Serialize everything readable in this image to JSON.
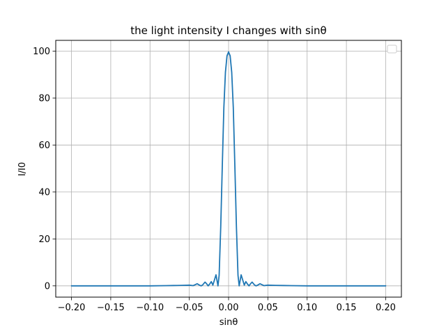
{
  "chart_data": {
    "type": "line",
    "title": "the light intensity I changes with sinθ",
    "xlabel": "sinθ",
    "ylabel": "I/I0",
    "xlim": [
      -0.22,
      0.22
    ],
    "ylim": [
      -4.8,
      104.6
    ],
    "xticks": [
      -0.2,
      -0.15,
      -0.1,
      -0.05,
      0.0,
      0.05,
      0.1,
      0.15,
      0.2
    ],
    "xtick_labels": [
      "−0.20",
      "−0.15",
      "−0.10",
      "−0.05",
      "0.00",
      "0.05",
      "0.10",
      "0.15",
      "0.20"
    ],
    "yticks": [
      0,
      20,
      40,
      60,
      80,
      100
    ],
    "ytick_labels": [
      "0",
      "20",
      "40",
      "60",
      "80",
      "100"
    ],
    "grid": true,
    "legend_position": "top-right",
    "line_color": "#1f77b4",
    "series": [
      {
        "x": [
          -0.2,
          -0.1,
          -0.08,
          -0.07,
          -0.06,
          -0.05,
          -0.045,
          -0.04,
          -0.037,
          -0.035,
          -0.033,
          -0.03,
          -0.028,
          -0.026,
          -0.024,
          -0.022,
          -0.02,
          -0.018,
          -0.016,
          -0.0135,
          -0.012,
          -0.01,
          -0.008,
          -0.006,
          -0.004,
          -0.002,
          0.0,
          0.002,
          0.004,
          0.006,
          0.008,
          0.01,
          0.012,
          0.0135,
          0.016,
          0.018,
          0.02,
          0.022,
          0.024,
          0.026,
          0.028,
          0.03,
          0.033,
          0.035,
          0.037,
          0.04,
          0.045,
          0.05,
          0.06,
          0.07,
          0.08,
          0.1,
          0.2
        ],
        "y": [
          0,
          0,
          0.1,
          0.15,
          0.2,
          0.3,
          0.1,
          0.9,
          0.3,
          0.0,
          0.4,
          1.6,
          0.9,
          0.0,
          0.8,
          1.8,
          0.3,
          2.5,
          4.7,
          0.0,
          4.5,
          25,
          51,
          76,
          91,
          98,
          99.7,
          98,
          91,
          76,
          51,
          25,
          4.5,
          0.0,
          4.7,
          2.5,
          0.3,
          1.8,
          0.8,
          0.0,
          0.9,
          1.6,
          0.4,
          0.0,
          0.3,
          0.9,
          0.1,
          0.3,
          0.2,
          0.15,
          0.1,
          0,
          0
        ]
      }
    ]
  }
}
